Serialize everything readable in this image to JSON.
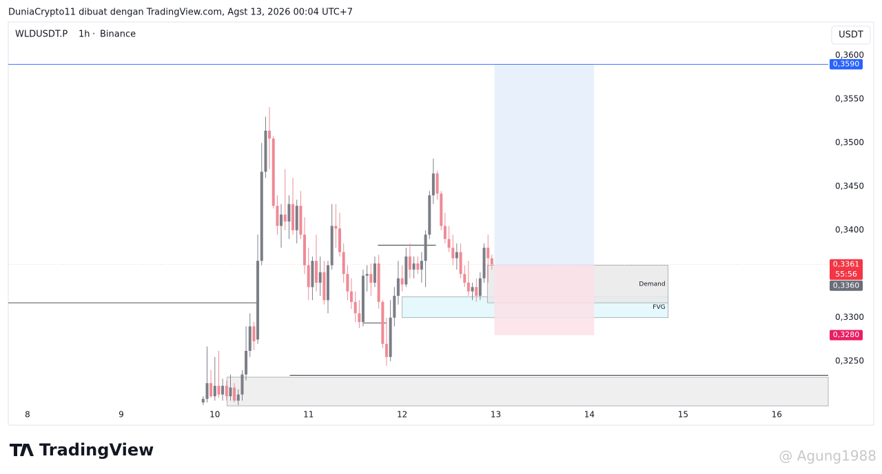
{
  "header": {
    "title": "DuniaCrypto11 dibuat dengan TradingView.com, Agst 13, 2026 00:04 UTC+7"
  },
  "chart_data": {
    "type": "candlestick",
    "symbol": "WLDUSDT.P",
    "interval": "1h",
    "exchange": "Binance",
    "currency": "USDT",
    "x": [
      9.875,
      9.917,
      9.958,
      10,
      10.042,
      10.083,
      10.125,
      10.167,
      10.208,
      10.25,
      10.292,
      10.333,
      10.375,
      10.417,
      10.458,
      10.5,
      10.542,
      10.583,
      10.625,
      10.667,
      10.708,
      10.75,
      10.792,
      10.833,
      10.875,
      10.917,
      10.958,
      11,
      11.042,
      11.083,
      11.125,
      11.167,
      11.208,
      11.25,
      11.292,
      11.333,
      11.375,
      11.417,
      11.458,
      11.5,
      11.542,
      11.583,
      11.625,
      11.667,
      11.708,
      11.75,
      11.792,
      11.833,
      11.875,
      11.917,
      11.958,
      12,
      12.042,
      12.083,
      12.125,
      12.167,
      12.208,
      12.25,
      12.292,
      12.333,
      12.375,
      12.417,
      12.458,
      12.5,
      12.542,
      12.583,
      12.625,
      12.667,
      12.708,
      12.75,
      12.792,
      12.833,
      12.875,
      12.917,
      12.958
    ],
    "open": [
      0.3203,
      0.3207,
      0.3225,
      0.321,
      0.3222,
      0.3212,
      0.3222,
      0.321,
      0.322,
      0.3205,
      0.3212,
      0.3235,
      0.3262,
      0.329,
      0.3275,
      0.3365,
      0.3467,
      0.3514,
      0.3505,
      0.3428,
      0.3405,
      0.3418,
      0.341,
      0.343,
      0.34,
      0.3428,
      0.3395,
      0.336,
      0.3335,
      0.3365,
      0.334,
      0.3352,
      0.332,
      0.336,
      0.3405,
      0.3402,
      0.3375,
      0.335,
      0.333,
      0.3318,
      0.3305,
      0.3295,
      0.3348,
      0.335,
      0.334,
      0.3362,
      0.3318,
      0.327,
      0.3255,
      0.33,
      0.3325,
      0.3345,
      0.3338,
      0.337,
      0.3355,
      0.3362,
      0.3355,
      0.3365,
      0.3395,
      0.344,
      0.3465,
      0.3442,
      0.3405,
      0.339,
      0.338,
      0.3368,
      0.3375,
      0.335,
      0.334,
      0.333,
      0.3335,
      0.3325,
      0.3345,
      0.338,
      0.3368
    ],
    "high": [
      0.321,
      0.3267,
      0.324,
      0.3255,
      0.3262,
      0.323,
      0.3228,
      0.3235,
      0.3225,
      0.3218,
      0.324,
      0.329,
      0.3305,
      0.3295,
      0.3395,
      0.35,
      0.353,
      0.3541,
      0.3508,
      0.344,
      0.343,
      0.347,
      0.344,
      0.346,
      0.3435,
      0.3445,
      0.3415,
      0.338,
      0.337,
      0.3395,
      0.337,
      0.3365,
      0.3365,
      0.343,
      0.343,
      0.342,
      0.3385,
      0.336,
      0.3345,
      0.333,
      0.332,
      0.3355,
      0.336,
      0.3362,
      0.337,
      0.3372,
      0.332,
      0.33,
      0.332,
      0.3335,
      0.3365,
      0.336,
      0.338,
      0.3385,
      0.337,
      0.337,
      0.3375,
      0.34,
      0.3445,
      0.3482,
      0.3468,
      0.3445,
      0.342,
      0.3405,
      0.3395,
      0.3385,
      0.3385,
      0.336,
      0.3365,
      0.334,
      0.3345,
      0.3352,
      0.3385,
      0.3395,
      0.3372
    ],
    "low": [
      0.32,
      0.3203,
      0.3208,
      0.3205,
      0.3208,
      0.3205,
      0.3205,
      0.3205,
      0.3203,
      0.32,
      0.3205,
      0.3228,
      0.3255,
      0.3263,
      0.327,
      0.336,
      0.346,
      0.347,
      0.3425,
      0.3395,
      0.338,
      0.34,
      0.339,
      0.3395,
      0.3385,
      0.339,
      0.335,
      0.332,
      0.332,
      0.333,
      0.3325,
      0.3315,
      0.3305,
      0.3355,
      0.338,
      0.337,
      0.334,
      0.332,
      0.331,
      0.3295,
      0.3288,
      0.329,
      0.333,
      0.3325,
      0.3335,
      0.331,
      0.3265,
      0.3245,
      0.325,
      0.329,
      0.3315,
      0.333,
      0.3335,
      0.3345,
      0.3345,
      0.335,
      0.334,
      0.3335,
      0.339,
      0.343,
      0.3435,
      0.34,
      0.3385,
      0.3375,
      0.336,
      0.3355,
      0.3345,
      0.3335,
      0.3325,
      0.332,
      0.3318,
      0.332,
      0.334,
      0.334,
      0.3355
    ],
    "close": [
      0.3207,
      0.3225,
      0.321,
      0.3222,
      0.3212,
      0.3222,
      0.321,
      0.322,
      0.3205,
      0.3212,
      0.3235,
      0.3262,
      0.329,
      0.3273,
      0.3365,
      0.3467,
      0.3514,
      0.3505,
      0.3428,
      0.3405,
      0.3418,
      0.341,
      0.343,
      0.34,
      0.3428,
      0.3395,
      0.336,
      0.3335,
      0.3365,
      0.334,
      0.3352,
      0.332,
      0.336,
      0.3405,
      0.3402,
      0.3375,
      0.335,
      0.333,
      0.3318,
      0.3305,
      0.3295,
      0.3348,
      0.335,
      0.334,
      0.3362,
      0.3318,
      0.327,
      0.3255,
      0.33,
      0.3325,
      0.3345,
      0.3338,
      0.337,
      0.3355,
      0.3362,
      0.3355,
      0.3365,
      0.3395,
      0.344,
      0.3465,
      0.3442,
      0.3405,
      0.339,
      0.338,
      0.3368,
      0.3375,
      0.335,
      0.334,
      0.333,
      0.3335,
      0.3325,
      0.3345,
      0.338,
      0.3368,
      0.3361
    ],
    "up_color": "#7b7e87",
    "down_color": "#ef8a95",
    "xlim": [
      7.794,
      16.55
    ],
    "xticks": [
      8,
      9,
      10,
      11,
      12,
      13,
      14,
      15,
      16
    ],
    "ylim": [
      0.3199,
      0.3636
    ],
    "yticks": [
      {
        "value": 0.325,
        "label": "0,3250"
      },
      {
        "value": 0.33,
        "label": "0,3300"
      },
      {
        "value": 0.34,
        "label": "0,3400"
      },
      {
        "value": 0.345,
        "label": "0,3450"
      },
      {
        "value": 0.35,
        "label": "0,3500"
      },
      {
        "value": 0.355,
        "label": "0,3550"
      },
      {
        "value": 0.36,
        "label": "0,3600"
      }
    ],
    "price_labels": [
      {
        "value": 0.359,
        "label": "0,3590",
        "color": "#2962ff",
        "line": true
      },
      {
        "value": 0.3361,
        "label": "0,3361",
        "countdown": "55:56",
        "color": "#f23645"
      },
      {
        "value": 0.336,
        "label": "0,3360",
        "color": "#6a6d78"
      },
      {
        "value": 0.328,
        "label": "0,3280",
        "color": "#e91e63"
      }
    ],
    "position": {
      "x": [
        12.985,
        14.05
      ],
      "target": 0.359,
      "entry": 0.336,
      "stop": 0.328,
      "target_color": "#e5eefc",
      "stop_color": "#fbe1e7"
    },
    "zones": [
      {
        "x": [
          10.13,
          16.55
        ],
        "price": [
          0.3199,
          0.3232
        ],
        "color": "#ececec"
      },
      {
        "label": "FVG",
        "x": [
          12.0,
          14.84
        ],
        "price": [
          0.33,
          0.3324
        ],
        "color": "#e1f7fb"
      },
      {
        "label": "Demand",
        "x": [
          12.91,
          14.84
        ],
        "price": [
          0.3317,
          0.336
        ],
        "color": "#e9e9e9"
      }
    ],
    "lines": [
      {
        "x": [
          7.794,
          10.46
        ],
        "price": 0.3317
      },
      {
        "x": [
          11.74,
          12.36
        ],
        "price": 0.3383
      },
      {
        "x": [
          11.58,
          11.83
        ],
        "price": 0.3294
      },
      {
        "x": [
          10.8,
          16.55
        ],
        "price": 0.3234
      }
    ]
  },
  "footer": {
    "logo": "TradingView",
    "watermark": "@ Agung1988"
  }
}
